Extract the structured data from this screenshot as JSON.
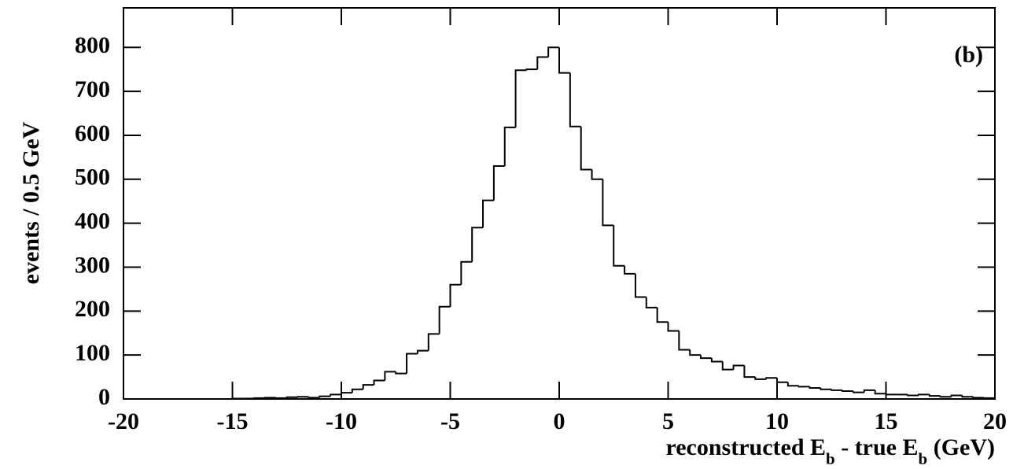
{
  "chart_data": {
    "type": "histogram",
    "ylabel": "events / 0.5 GeV",
    "xlabel": "reconstructed E_b - true E_b (GeV)",
    "annotation": "(b)",
    "bins": [
      -20,
      -19.5,
      -19,
      -18.5,
      -18,
      -17.5,
      -17,
      -16.5,
      -16,
      -15.5,
      -15,
      -14.5,
      -14,
      -13.5,
      -13,
      -12.5,
      -12,
      -11.5,
      -11,
      -10.5,
      -10,
      -9.5,
      -9,
      -8.5,
      -8,
      -7.5,
      -7,
      -6.5,
      -6,
      -5.5,
      -5,
      -4.5,
      -4,
      -3.5,
      -3,
      -2.5,
      -2,
      -1.5,
      -1,
      -0.5,
      0,
      0.5,
      1,
      1.5,
      2,
      2.5,
      3,
      3.5,
      4,
      4.5,
      5,
      5.5,
      6,
      6.5,
      7,
      7.5,
      8,
      8.5,
      9,
      9.5,
      10,
      10.5,
      11,
      11.5,
      12,
      12.5,
      13,
      13.5,
      14,
      14.5,
      15,
      15.5,
      16,
      16.5,
      17,
      17.5,
      18,
      18.5,
      19,
      19.5,
      20
    ],
    "values": [
      0,
      0,
      0,
      0,
      0,
      0,
      0,
      0,
      0,
      0,
      1,
      1,
      2,
      3,
      2,
      4,
      5,
      3,
      6,
      10,
      14,
      22,
      32,
      42,
      62,
      58,
      103,
      110,
      148,
      210,
      260,
      312,
      390,
      452,
      530,
      618,
      748,
      750,
      778,
      800,
      742,
      620,
      522,
      500,
      395,
      303,
      285,
      232,
      208,
      175,
      155,
      112,
      100,
      93,
      85,
      67,
      76,
      50,
      45,
      48,
      38,
      30,
      28,
      25,
      22,
      20,
      18,
      15,
      20,
      12,
      10,
      10,
      8,
      10,
      7,
      5,
      8,
      5,
      3,
      2
    ],
    "color": "#000000",
    "xlim": [
      -20,
      20
    ],
    "xticks": [
      -20,
      -15,
      -10,
      -5,
      0,
      5,
      10,
      15,
      20
    ],
    "ylim": [
      0,
      890
    ],
    "yticks": [
      0,
      100,
      200,
      300,
      400,
      500,
      600,
      700,
      800
    ]
  }
}
